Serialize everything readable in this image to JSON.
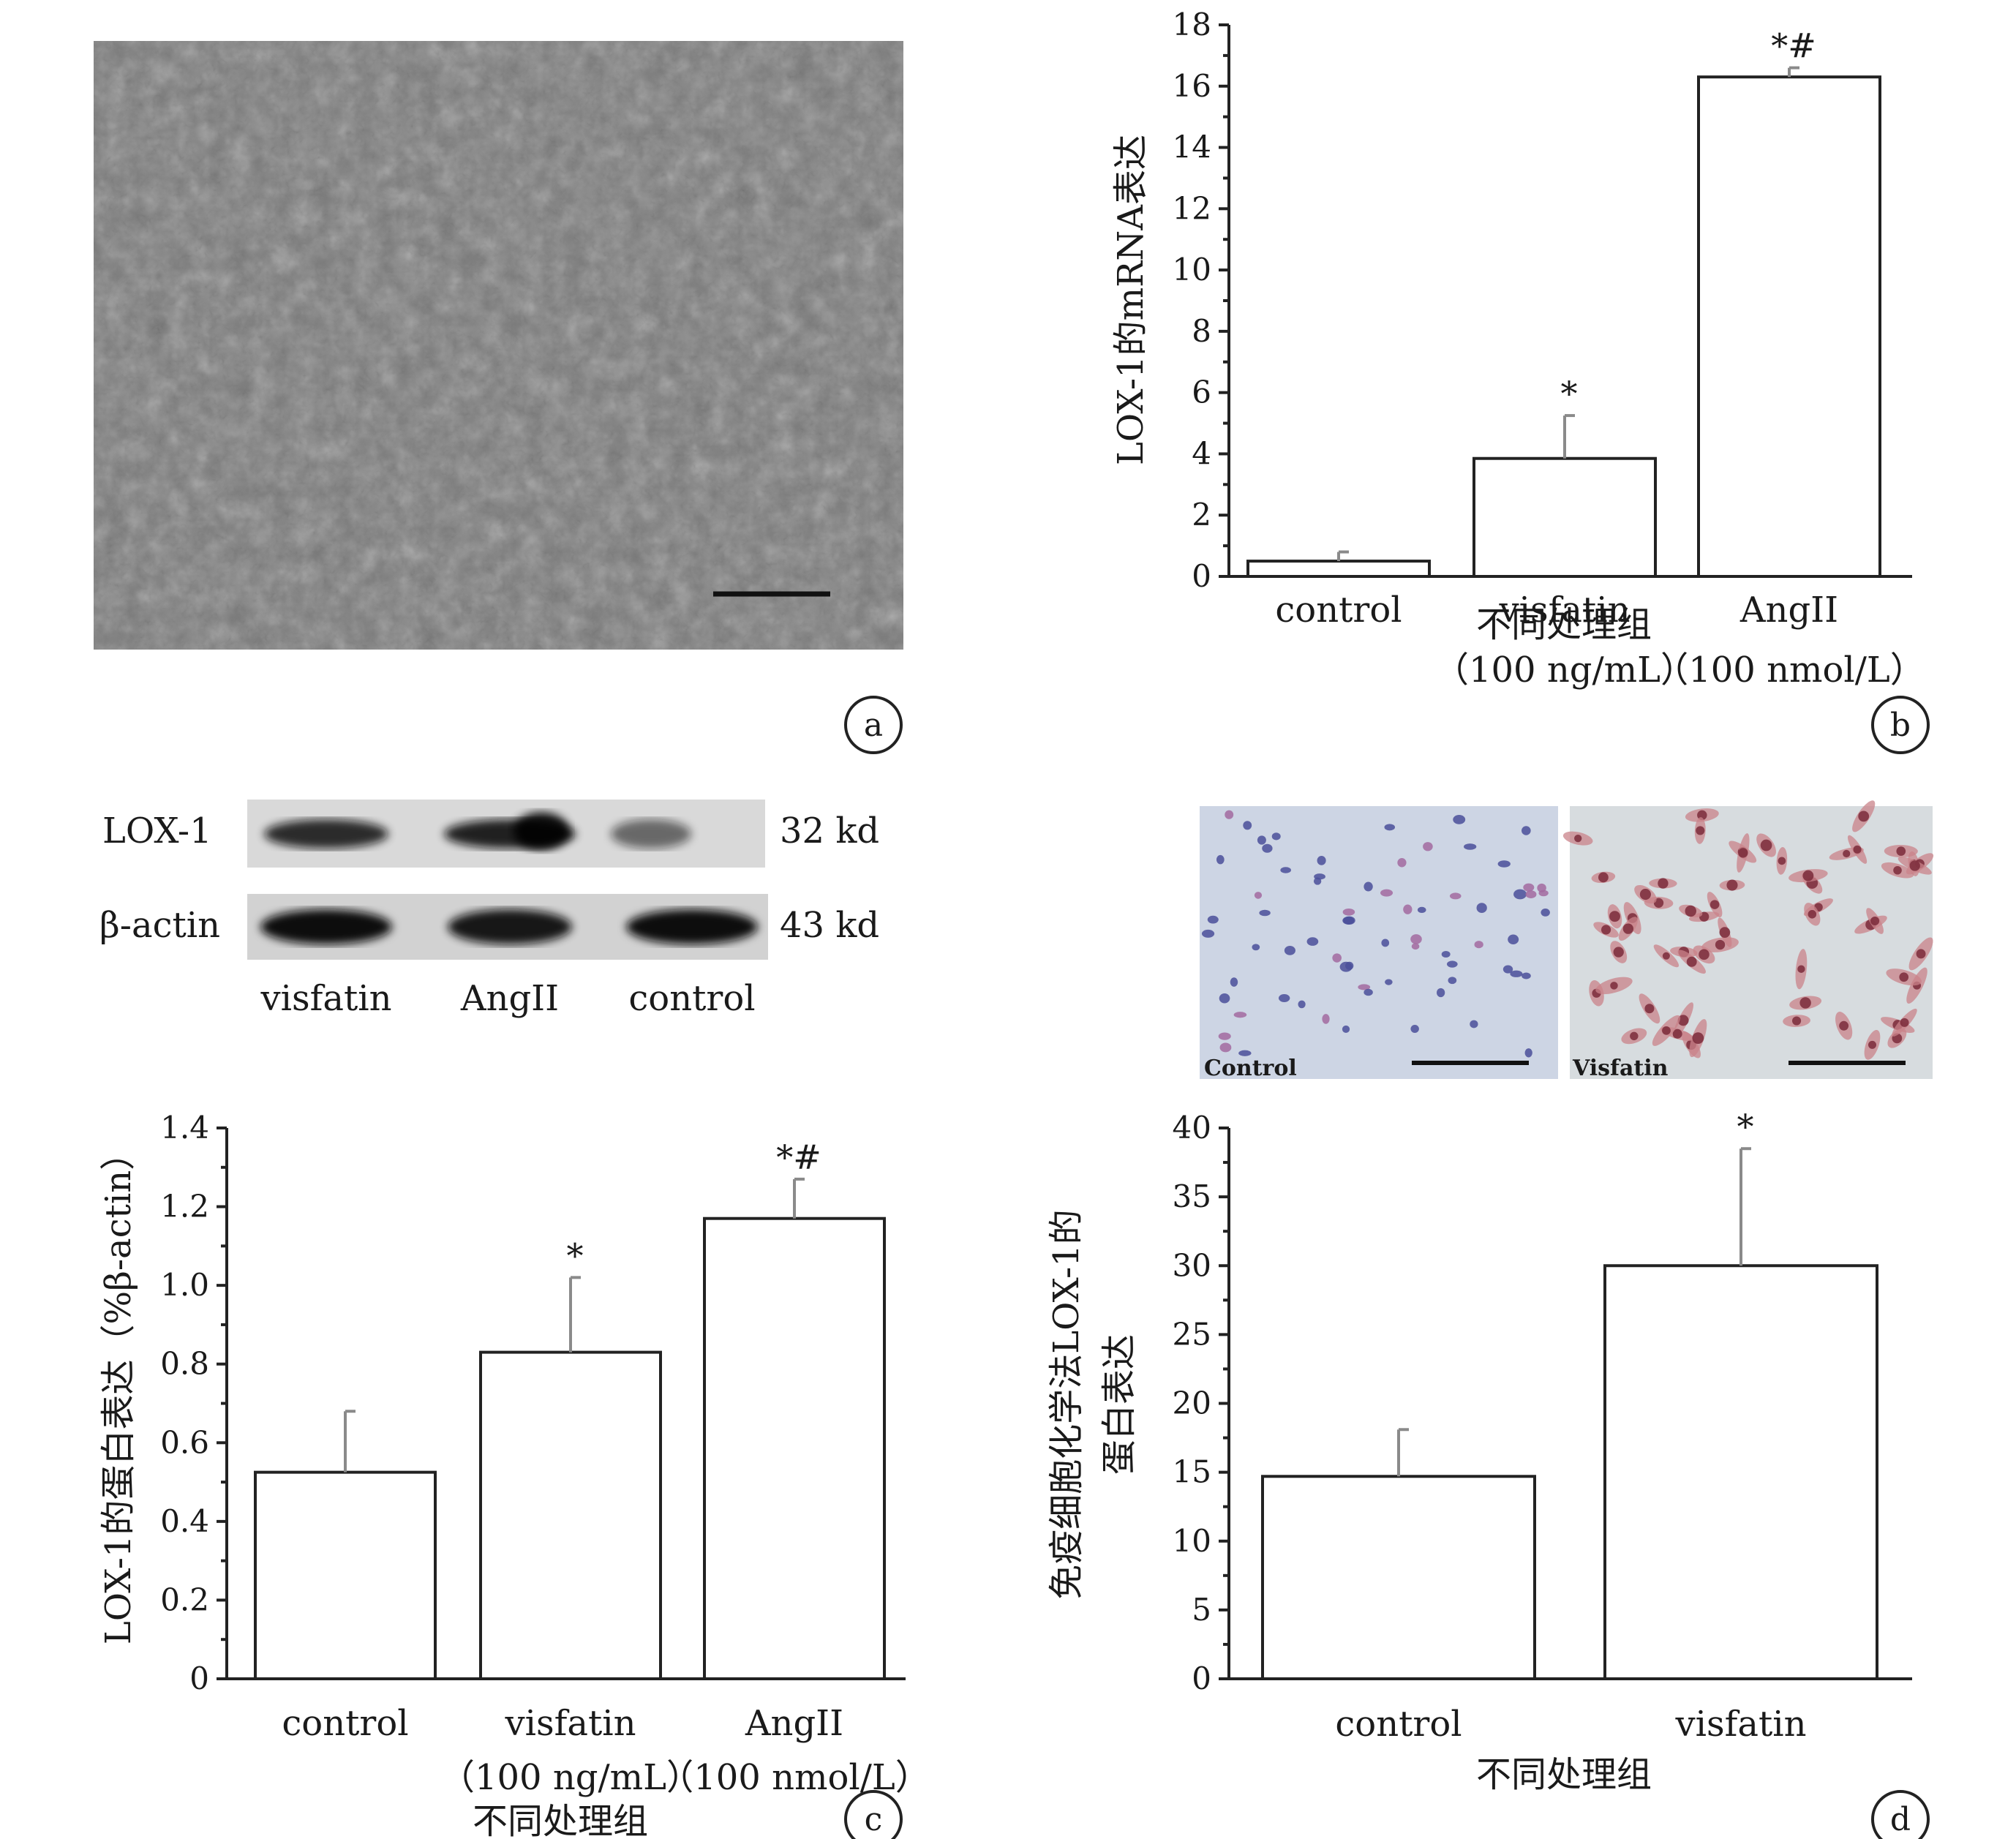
{
  "panel_letters": [
    "a",
    "b",
    "c",
    "d"
  ],
  "western_blot": {
    "rows": [
      {
        "label": "LOX-1",
        "size": "32 kd",
        "intensities": [
          0.85,
          0.9,
          0.55
        ]
      },
      {
        "label": "β-actin",
        "size": "43 kd",
        "intensities": [
          1.0,
          0.95,
          1.0
        ]
      }
    ],
    "lanes": [
      "visfatin",
      "AngII",
      "control"
    ]
  },
  "ihc_images": [
    {
      "label": "Control"
    },
    {
      "label": "Visfatin"
    }
  ],
  "chart_data": [
    {
      "id": "b",
      "type": "bar",
      "categories": [
        "control",
        "visfatin",
        "AngII"
      ],
      "category_sublabels": [
        "",
        "（100 ng/mL）",
        "（100 nmol/L）"
      ],
      "values": [
        0.5,
        3.85,
        16.3
      ],
      "errors": [
        0.3,
        1.4,
        0.3
      ],
      "significance": [
        "",
        "*",
        "*#"
      ],
      "xlabel": "不同处理组",
      "ylabel": "LOX-1的mRNA表达",
      "ylim": [
        0,
        18
      ],
      "yticks": [
        "0",
        "2",
        "4",
        "6",
        "8",
        "10",
        "12",
        "14",
        "16",
        "18"
      ]
    },
    {
      "id": "c",
      "type": "bar",
      "categories": [
        "control",
        "visfatin",
        "AngII"
      ],
      "category_sublabels": [
        "",
        "（100 ng/mL）",
        "（100 nmol/L）"
      ],
      "values": [
        0.525,
        0.83,
        1.17
      ],
      "errors": [
        0.155,
        0.19,
        0.1
      ],
      "significance": [
        "",
        "*",
        "*#"
      ],
      "xlabel": "不同处理组",
      "ylabel": "LOX-1的蛋白表达（%β-actin）",
      "ylim": [
        0,
        1.4
      ],
      "yticks": [
        "0",
        "0.2",
        "0.4",
        "0.6",
        "0.8",
        "1.0",
        "1.2",
        "1.4"
      ]
    },
    {
      "id": "d",
      "type": "bar",
      "categories": [
        "control",
        "visfatin"
      ],
      "category_sublabels": [
        "",
        ""
      ],
      "values": [
        14.7,
        30.0
      ],
      "errors": [
        3.4,
        8.5
      ],
      "significance": [
        "",
        "*"
      ],
      "xlabel": "不同处理组",
      "ylabel": "免疫细胞化学法LOX-1的",
      "ylabel2": "蛋白表达",
      "ylim": [
        0,
        40
      ],
      "yticks": [
        "0",
        "5",
        "10",
        "15",
        "20",
        "25",
        "30",
        "35",
        "40"
      ]
    }
  ]
}
